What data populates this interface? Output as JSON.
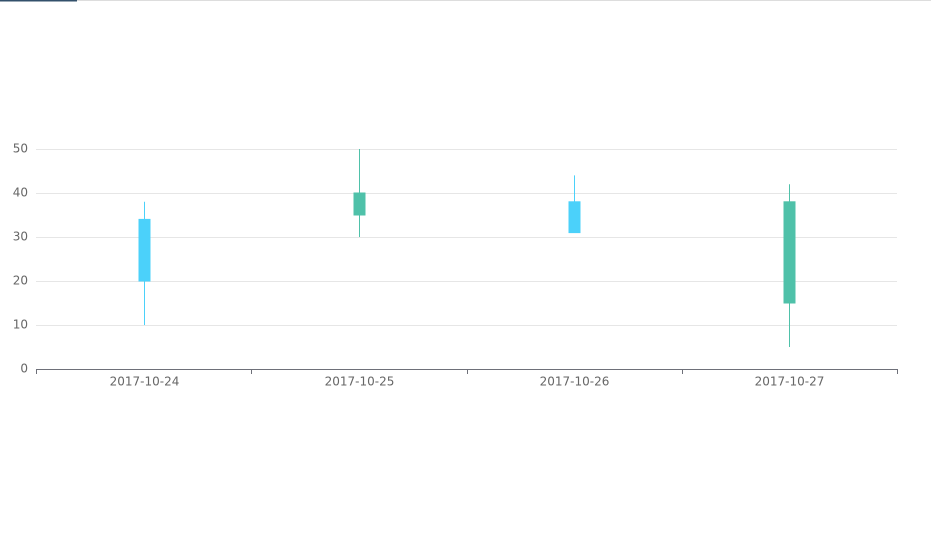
{
  "chart_data": {
    "type": "candlestick",
    "categories": [
      "2017-10-24",
      "2017-10-25",
      "2017-10-26",
      "2017-10-27"
    ],
    "values": [
      [
        20,
        34,
        10,
        38
      ],
      [
        40,
        35,
        30,
        50
      ],
      [
        31,
        38,
        33,
        44
      ],
      [
        38,
        15,
        5,
        42
      ]
    ],
    "up_color": "#4bd1fa",
    "down_color": "#4fc1a9",
    "ylim": [
      0,
      50
    ],
    "yticks": [
      0,
      10,
      20,
      30,
      40,
      50
    ],
    "grid": true
  }
}
